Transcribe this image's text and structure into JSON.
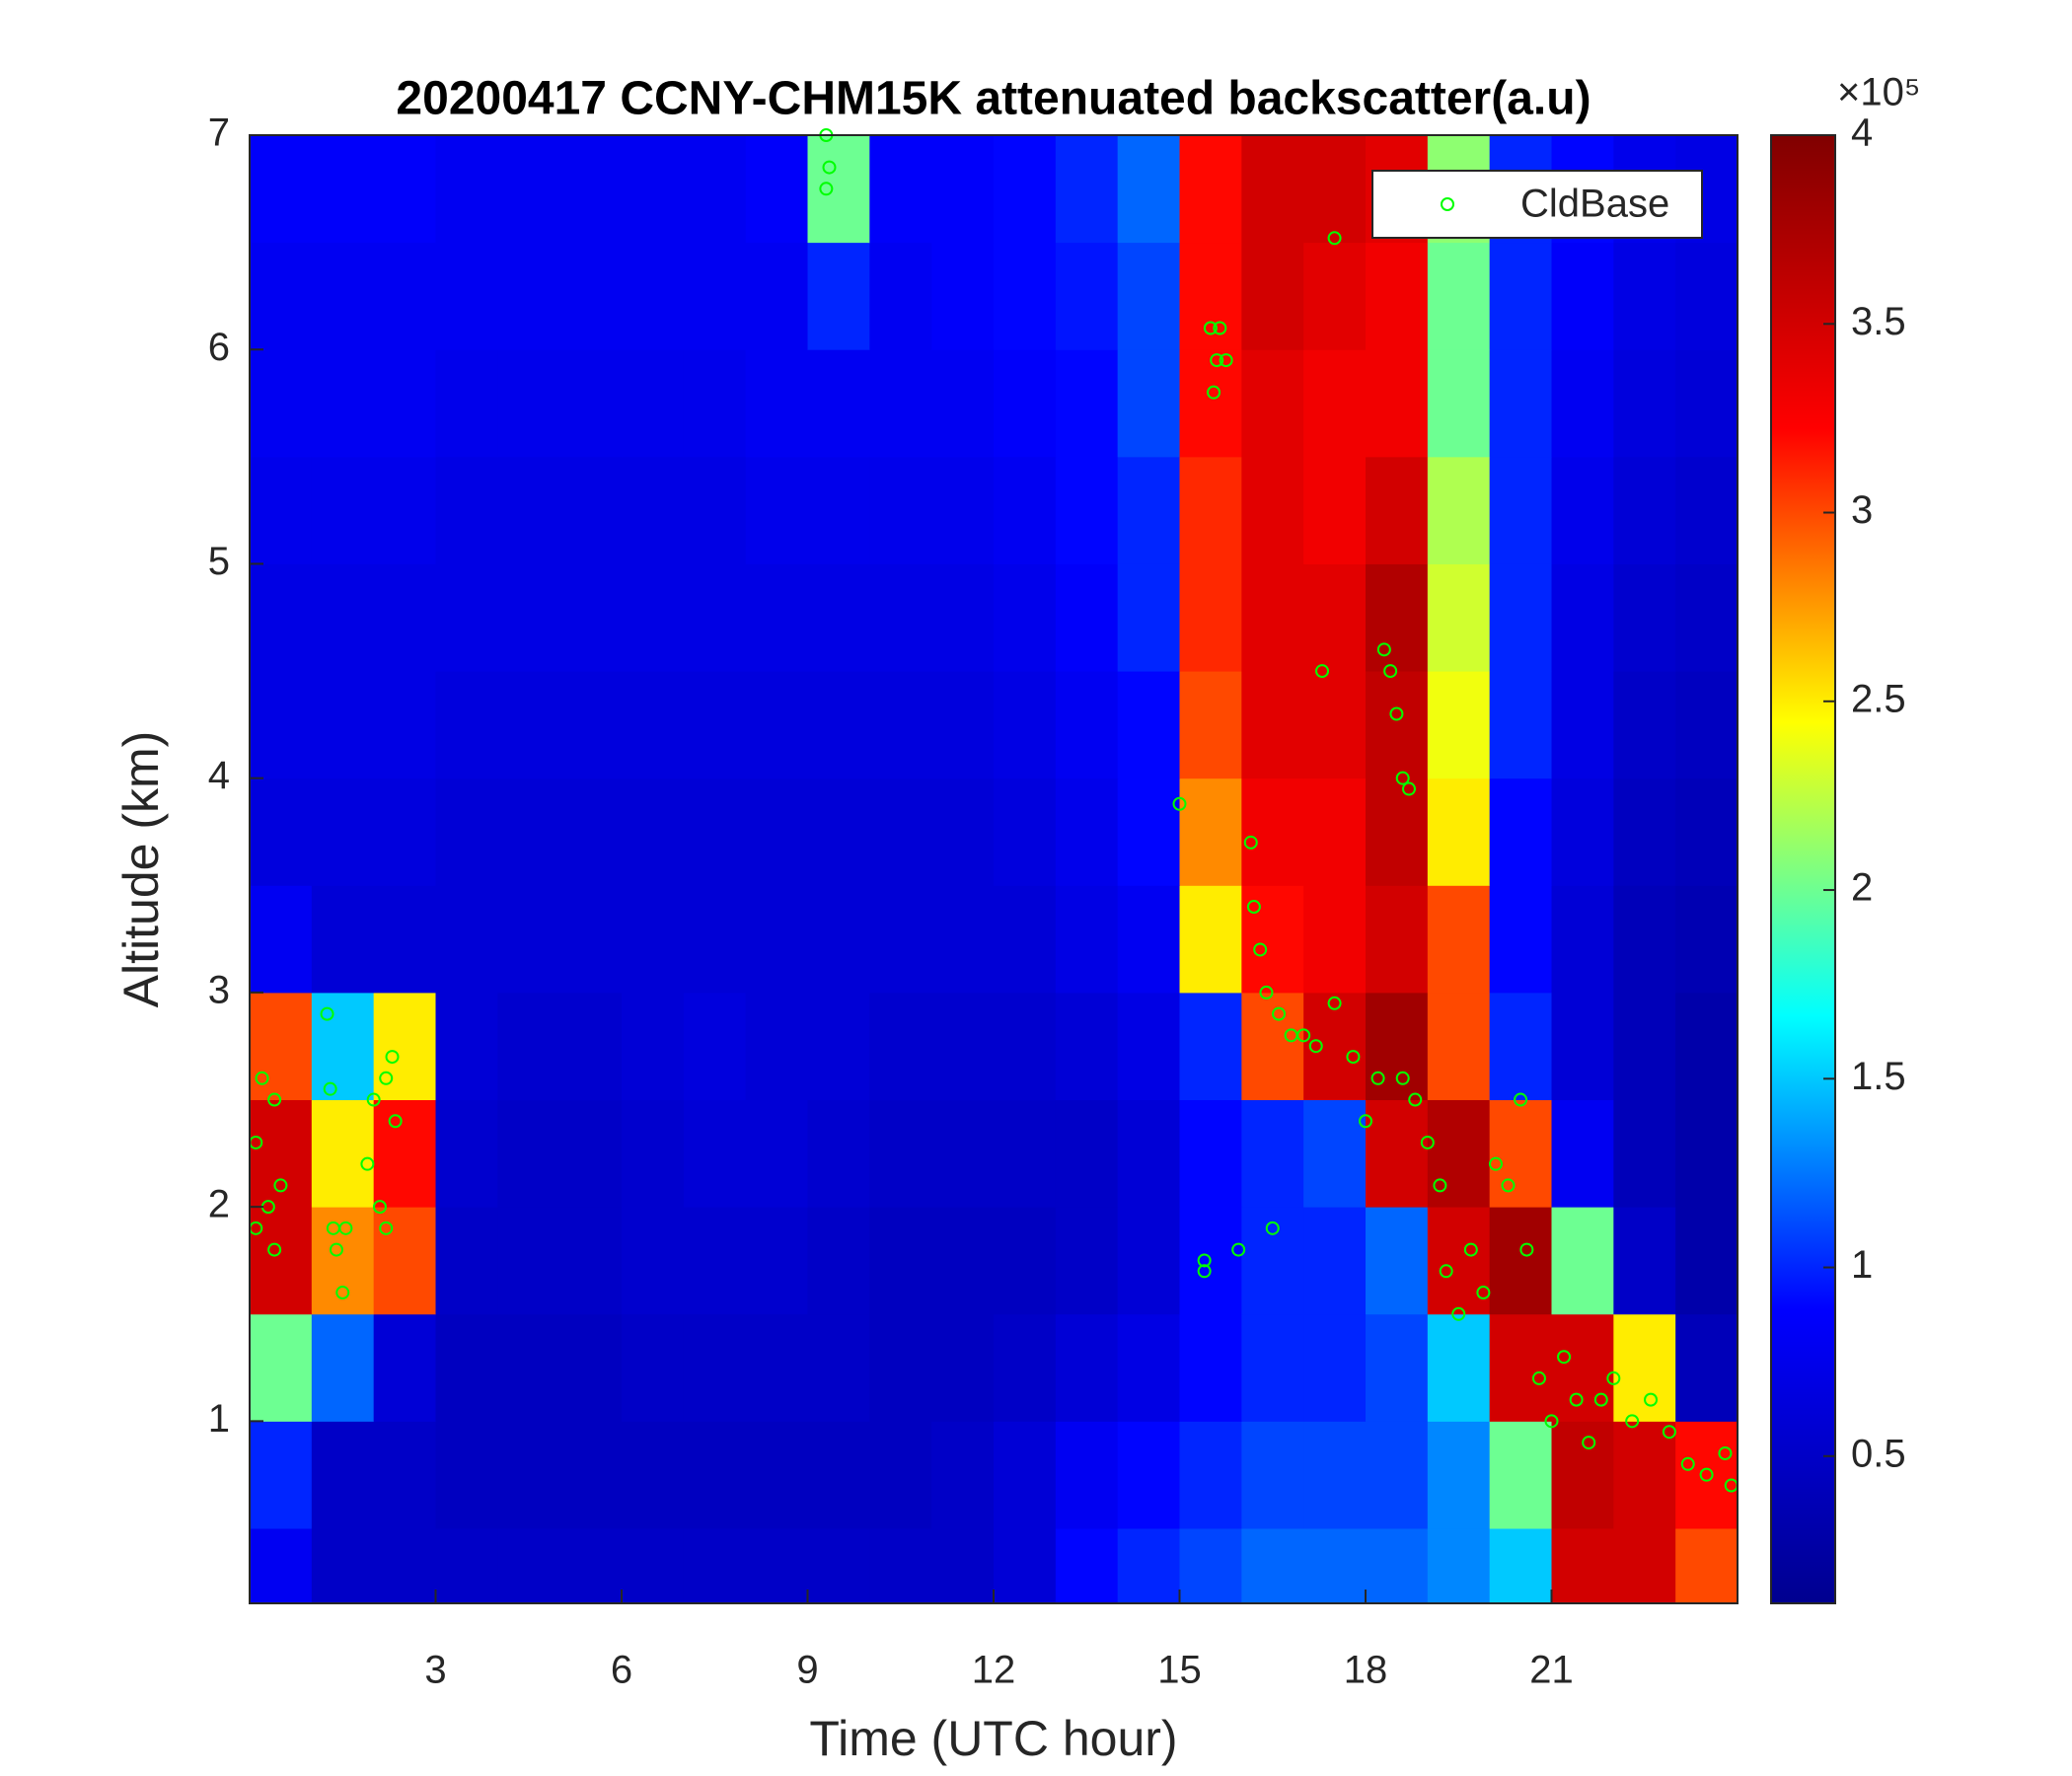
{
  "chart_data": {
    "type": "heatmap",
    "title": "20200417 CCNY-CHM15K attenuated backscatter(a.u)",
    "x_label": "Time (UTC hour)",
    "y_label": "Altitude (km)",
    "xlim": [
      0,
      24
    ],
    "ylim": [
      0.15,
      7
    ],
    "xticks": [
      3,
      6,
      9,
      12,
      15,
      18,
      21
    ],
    "yticks": [
      1,
      2,
      3,
      4,
      5,
      6,
      7
    ],
    "colorbar_exponent": "×10⁵",
    "clim": [
      0.11,
      4
    ],
    "cticks": [
      0.5,
      1,
      1.5,
      2,
      2.5,
      3,
      3.5,
      4
    ],
    "colormap": [
      "#00008f",
      "#0000ff",
      "#00ffff",
      "#ffff00",
      "#ff0000",
      "#800000"
    ],
    "xbins": [
      0,
      1,
      2,
      3,
      4,
      5,
      6,
      7,
      8,
      9,
      10,
      11,
      12,
      13,
      14,
      15,
      16,
      17,
      18,
      19,
      20,
      21,
      22,
      23,
      24
    ],
    "ybins": [
      0.15,
      0.5,
      1,
      1.5,
      2,
      2.5,
      3,
      3.5,
      4,
      4.5,
      5,
      5.5,
      6,
      6.5,
      7
    ],
    "z": [
      [
        0.8,
        0.5,
        0.5,
        0.5,
        0.5,
        0.5,
        0.5,
        0.5,
        0.5,
        0.5,
        0.5,
        0.5,
        0.6,
        0.9,
        1.0,
        1.1,
        1.2,
        1.2,
        1.2,
        1.3,
        1.5,
        3.5,
        3.5,
        3.0
      ],
      [
        1.0,
        0.5,
        0.5,
        0.45,
        0.45,
        0.45,
        0.45,
        0.45,
        0.45,
        0.45,
        0.45,
        0.5,
        0.6,
        0.8,
        0.9,
        1.0,
        1.1,
        1.1,
        1.1,
        1.3,
        2.0,
        3.6,
        3.5,
        3.2
      ],
      [
        2.0,
        1.2,
        0.6,
        0.45,
        0.45,
        0.45,
        0.5,
        0.5,
        0.5,
        0.5,
        0.45,
        0.45,
        0.5,
        0.6,
        0.7,
        0.9,
        1.0,
        1.0,
        1.1,
        1.5,
        3.5,
        3.5,
        2.5,
        0.4
      ],
      [
        3.5,
        2.8,
        3.0,
        0.5,
        0.5,
        0.5,
        0.55,
        0.55,
        0.55,
        0.5,
        0.45,
        0.45,
        0.45,
        0.5,
        0.6,
        0.9,
        1.0,
        1.0,
        1.2,
        3.5,
        3.8,
        2.0,
        0.5,
        0.3
      ],
      [
        3.5,
        2.5,
        3.2,
        0.55,
        0.5,
        0.5,
        0.55,
        0.6,
        0.6,
        0.55,
        0.5,
        0.5,
        0.5,
        0.5,
        0.6,
        0.9,
        1.0,
        1.1,
        3.5,
        3.7,
        3.0,
        0.8,
        0.4,
        0.3
      ],
      [
        3.0,
        1.5,
        2.5,
        0.6,
        0.55,
        0.55,
        0.6,
        0.65,
        0.6,
        0.6,
        0.55,
        0.55,
        0.55,
        0.6,
        0.7,
        1.0,
        3.0,
        3.5,
        3.8,
        3.0,
        1.0,
        0.6,
        0.4,
        0.3
      ],
      [
        0.8,
        0.6,
        0.6,
        0.6,
        0.6,
        0.6,
        0.6,
        0.6,
        0.6,
        0.6,
        0.6,
        0.6,
        0.6,
        0.7,
        0.8,
        2.5,
        3.2,
        3.3,
        3.5,
        3.0,
        0.9,
        0.6,
        0.4,
        0.35
      ],
      [
        0.65,
        0.65,
        0.65,
        0.6,
        0.6,
        0.6,
        0.6,
        0.6,
        0.6,
        0.6,
        0.6,
        0.6,
        0.65,
        0.75,
        0.9,
        2.8,
        3.3,
        3.3,
        3.6,
        2.5,
        0.9,
        0.65,
        0.45,
        0.4
      ],
      [
        0.7,
        0.7,
        0.7,
        0.65,
        0.65,
        0.65,
        0.65,
        0.65,
        0.65,
        0.65,
        0.65,
        0.65,
        0.7,
        0.8,
        0.9,
        3.0,
        3.4,
        3.4,
        3.6,
        2.4,
        1.0,
        0.7,
        0.5,
        0.45
      ],
      [
        0.7,
        0.7,
        0.7,
        0.7,
        0.7,
        0.7,
        0.7,
        0.7,
        0.7,
        0.7,
        0.7,
        0.7,
        0.75,
        0.85,
        1.0,
        3.1,
        3.4,
        3.4,
        3.7,
        2.3,
        1.0,
        0.7,
        0.55,
        0.5
      ],
      [
        0.75,
        0.75,
        0.75,
        0.7,
        0.7,
        0.7,
        0.7,
        0.7,
        0.75,
        0.75,
        0.75,
        0.75,
        0.8,
        0.9,
        1.0,
        3.1,
        3.4,
        3.3,
        3.5,
        2.2,
        1.0,
        0.75,
        0.6,
        0.55
      ],
      [
        0.8,
        0.8,
        0.8,
        0.75,
        0.75,
        0.75,
        0.75,
        0.75,
        0.8,
        0.8,
        0.8,
        0.8,
        0.85,
        0.9,
        1.1,
        3.2,
        3.4,
        3.3,
        3.3,
        2.0,
        1.0,
        0.8,
        0.65,
        0.6
      ],
      [
        0.8,
        0.8,
        0.8,
        0.8,
        0.8,
        0.8,
        0.8,
        0.8,
        0.8,
        1.0,
        0.8,
        0.85,
        0.9,
        0.95,
        1.1,
        3.2,
        3.5,
        3.4,
        3.3,
        2.0,
        1.0,
        0.85,
        0.7,
        0.65
      ],
      [
        0.85,
        0.85,
        0.85,
        0.8,
        0.8,
        0.8,
        0.8,
        0.8,
        0.85,
        2.0,
        0.85,
        0.85,
        0.9,
        1.0,
        1.2,
        3.2,
        3.5,
        3.5,
        3.4,
        2.1,
        1.0,
        0.9,
        0.75,
        0.7
      ]
    ],
    "legend": "upper right",
    "series": [
      {
        "name": "CldBase",
        "color": "#00ff00",
        "x": [
          0.1,
          0.1,
          0.2,
          0.3,
          0.4,
          0.5,
          0.4,
          1.25,
          1.3,
          1.35,
          1.4,
          1.5,
          1.55,
          1.9,
          2.0,
          2.1,
          2.2,
          2.3,
          2.35,
          2.2,
          9.3,
          9.35,
          9.3,
          15.0,
          15.4,
          15.4,
          15.5,
          15.55,
          15.6,
          15.75,
          15.65,
          15.95,
          16.15,
          16.2,
          16.3,
          16.4,
          16.5,
          16.6,
          16.8,
          17.0,
          17.2,
          17.3,
          17.5,
          17.5,
          17.8,
          18.0,
          18.2,
          18.3,
          18.4,
          18.5,
          18.6,
          18.7,
          18.6,
          18.8,
          19.0,
          19.2,
          19.3,
          19.5,
          19.7,
          19.9,
          20.1,
          20.3,
          20.5,
          20.6,
          20.8,
          21.0,
          21.2,
          21.4,
          21.6,
          21.8,
          22.0,
          22.3,
          22.6,
          22.9,
          23.2,
          23.5,
          23.8,
          23.9
        ],
        "y": [
          1.9,
          2.3,
          2.6,
          2.0,
          1.8,
          2.1,
          2.5,
          2.9,
          2.55,
          1.9,
          1.8,
          1.6,
          1.9,
          2.2,
          2.5,
          2.0,
          2.6,
          2.7,
          2.4,
          1.9,
          7.0,
          6.85,
          6.75,
          3.88,
          1.75,
          1.7,
          6.1,
          5.8,
          5.95,
          5.95,
          6.1,
          1.8,
          3.7,
          3.4,
          3.2,
          3.0,
          1.9,
          2.9,
          2.8,
          2.8,
          2.75,
          4.5,
          6.52,
          2.95,
          2.7,
          2.4,
          2.6,
          4.6,
          4.5,
          4.3,
          4.0,
          3.95,
          2.6,
          2.5,
          2.3,
          2.1,
          1.7,
          1.5,
          1.8,
          1.6,
          2.2,
          2.1,
          2.5,
          1.8,
          1.2,
          1.0,
          1.3,
          1.1,
          0.9,
          1.1,
          1.2,
          1.0,
          1.1,
          0.95,
          0.8,
          0.75,
          0.85,
          0.7
        ]
      }
    ]
  }
}
